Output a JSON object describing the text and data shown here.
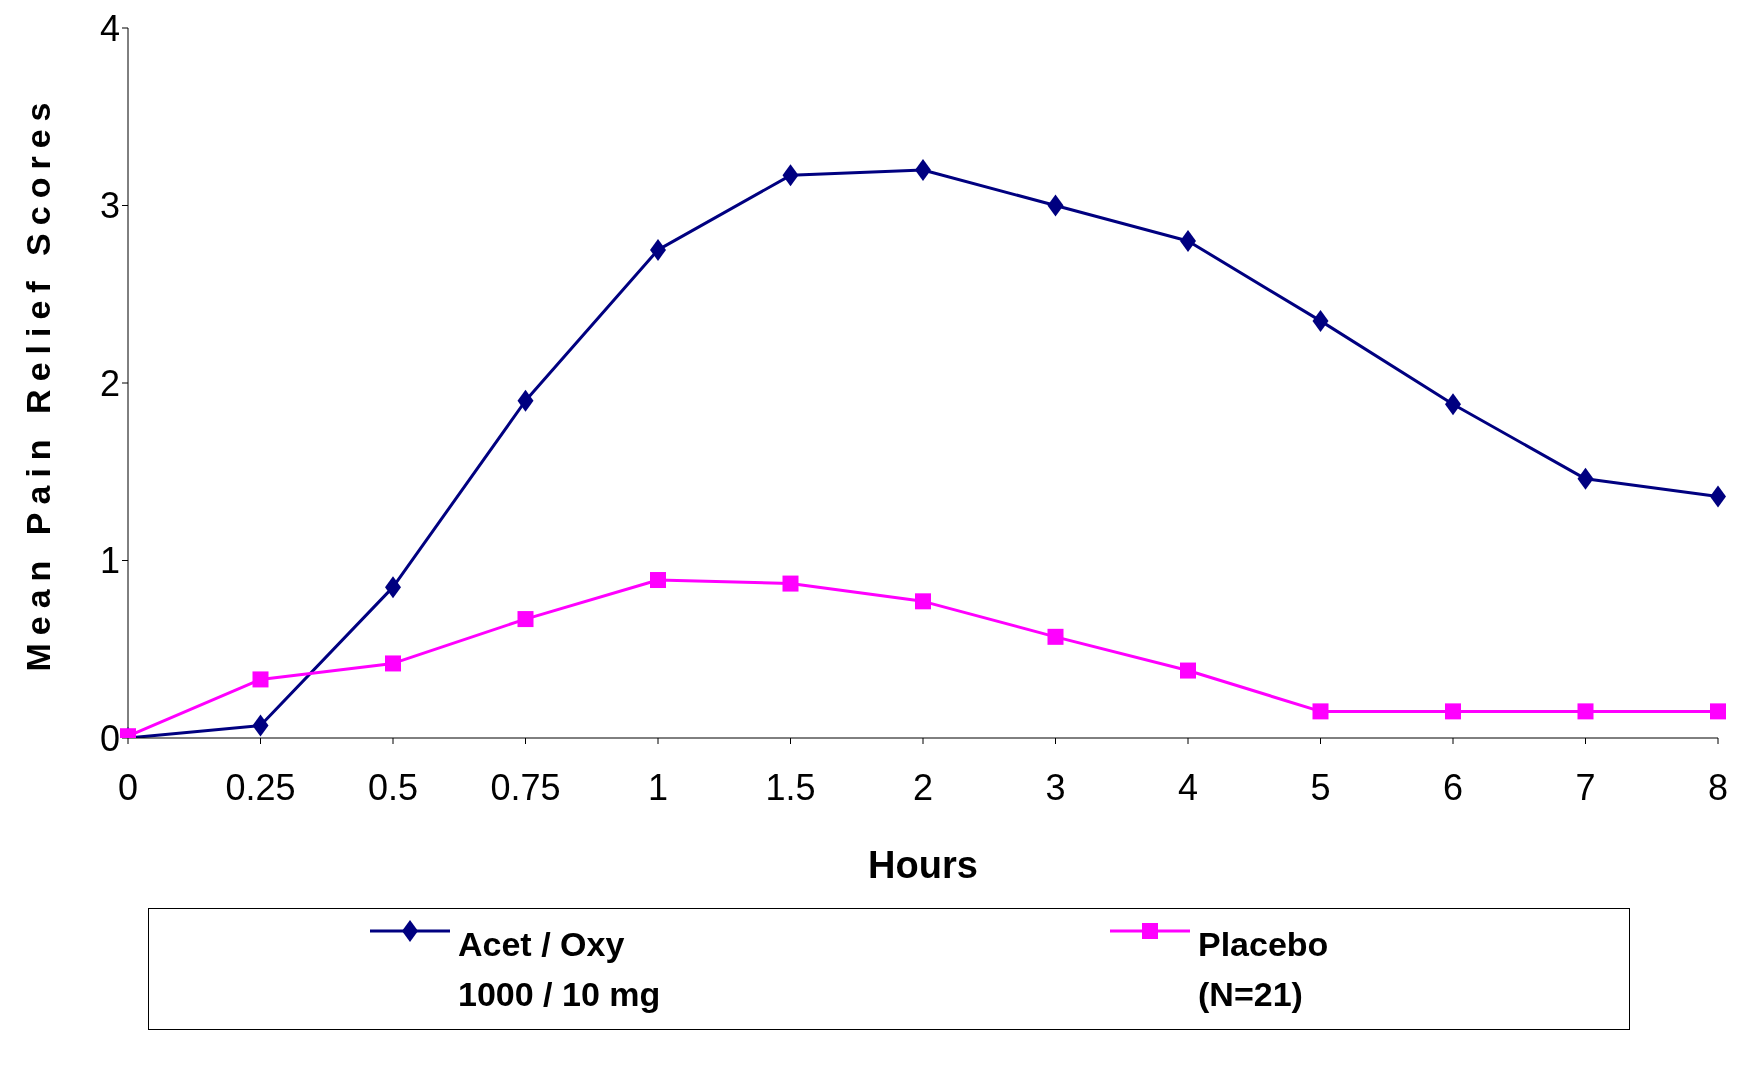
{
  "chart_data": {
    "type": "line",
    "xlabel": "Hours",
    "ylabel": "Mean Pain Relief Scores",
    "categories": [
      "0",
      "0.25",
      "0.5",
      "0.75",
      "1",
      "1.5",
      "2",
      "3",
      "4",
      "5",
      "6",
      "7",
      "8"
    ],
    "ylim": [
      0,
      4
    ],
    "yticks": [
      0,
      1,
      2,
      3,
      4
    ],
    "grid": false,
    "legend": "bottom",
    "line_style": "solid",
    "series": [
      {
        "name": "Acet / Oxy 1000 / 10 mg",
        "color": "#000080",
        "marker": "diamond",
        "values": [
          0,
          0.07,
          0.85,
          1.9,
          2.75,
          3.17,
          3.2,
          3.0,
          2.8,
          2.35,
          1.88,
          1.46,
          1.36
        ]
      },
      {
        "name": "Placebo (N=21)",
        "color": "#ff00ff",
        "marker": "square",
        "values": [
          0.01,
          0.33,
          0.42,
          0.67,
          0.89,
          0.87,
          0.77,
          0.57,
          0.38,
          0.15,
          0.15,
          0.15,
          0.15
        ]
      }
    ]
  }
}
